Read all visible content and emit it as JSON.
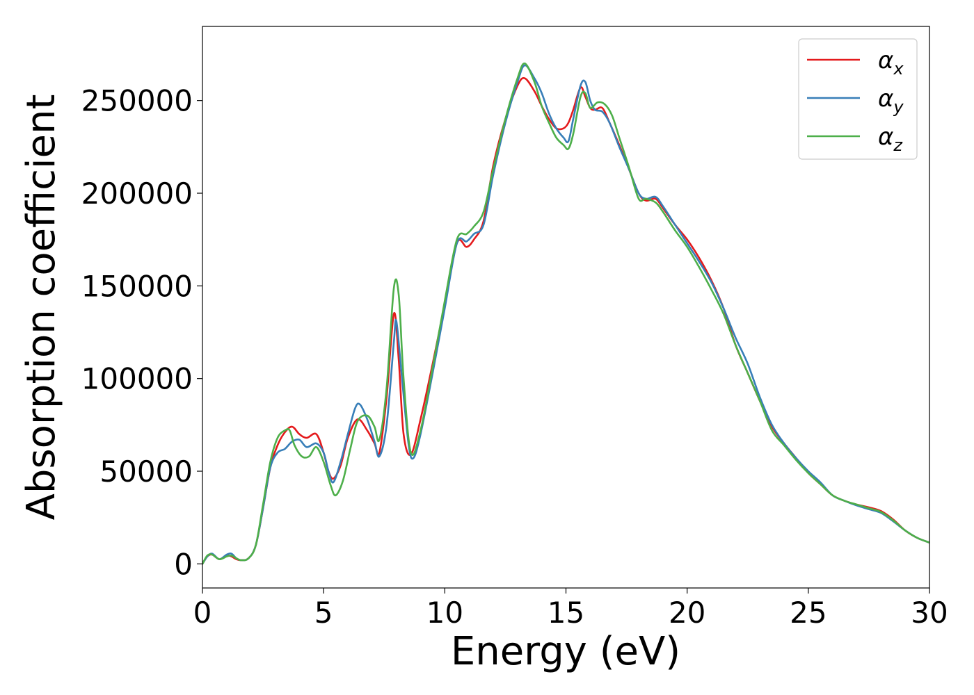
{
  "chart_data": {
    "type": "line",
    "xlabel": "Energy (eV)",
    "ylabel": "Absorption coefficient",
    "xlim": [
      0,
      30
    ],
    "ylim": [
      -13000,
      290000
    ],
    "xticks": [
      0,
      5,
      10,
      15,
      20,
      25,
      30
    ],
    "xtick_labels": [
      "0",
      "5",
      "10",
      "15",
      "20",
      "25",
      "30"
    ],
    "yticks": [
      0,
      50000,
      100000,
      150000,
      200000,
      250000
    ],
    "ytick_labels": [
      "0",
      "50000",
      "100000",
      "150000",
      "200000",
      "250000"
    ],
    "grid": false,
    "legend_position": "top-right",
    "series": [
      {
        "symbol": "α",
        "subscript": "x",
        "color": "#e41a1c",
        "x": [
          0,
          0.2,
          0.4,
          0.7,
          1.0,
          1.2,
          1.4,
          1.6,
          1.9,
          2.2,
          2.5,
          2.8,
          3.1,
          3.4,
          3.7,
          4.0,
          4.3,
          4.7,
          5.0,
          5.2,
          5.4,
          5.7,
          6.0,
          6.4,
          6.8,
          7.1,
          7.3,
          7.6,
          7.9,
          8.1,
          8.3,
          8.6,
          9.0,
          9.5,
          10.0,
          10.5,
          10.9,
          11.2,
          11.6,
          12.0,
          12.5,
          13.0,
          13.3,
          13.7,
          14.0,
          14.3,
          14.6,
          14.9,
          15.1,
          15.3,
          15.6,
          15.8,
          16.0,
          16.2,
          16.5,
          16.8,
          17.2,
          17.6,
          18.0,
          18.3,
          18.7,
          19.0,
          19.5,
          20.0,
          20.5,
          21.0,
          21.5,
          22.0,
          22.5,
          23.0,
          23.5,
          24.0,
          24.5,
          25.0,
          25.5,
          26.0,
          26.5,
          27.0,
          27.5,
          28.0,
          28.5,
          29.0,
          29.5,
          30.0
        ],
        "values": [
          0,
          4000,
          5000,
          2500,
          4500,
          4000,
          2500,
          2000,
          3000,
          10000,
          30000,
          52000,
          64000,
          71000,
          74000,
          70000,
          68000,
          70000,
          60000,
          50000,
          46000,
          53000,
          68000,
          78000,
          72000,
          65000,
          60000,
          90000,
          135000,
          110000,
          70000,
          59000,
          78000,
          108000,
          140000,
          173000,
          171000,
          175000,
          185000,
          215000,
          240000,
          258000,
          262000,
          255000,
          247000,
          240000,
          235000,
          235000,
          238000,
          245000,
          257000,
          252000,
          246000,
          245000,
          246000,
          238000,
          226000,
          213000,
          200000,
          196000,
          197000,
          192000,
          183000,
          175000,
          165000,
          153000,
          138000,
          118000,
          103000,
          88000,
          74000,
          65000,
          57000,
          49000,
          43000,
          37000,
          34000,
          32000,
          30500,
          28500,
          24000,
          18000,
          14000,
          11500
        ]
      },
      {
        "symbol": "α",
        "subscript": "y",
        "color": "#377eb8",
        "x": [
          0,
          0.2,
          0.4,
          0.7,
          1.0,
          1.2,
          1.4,
          1.6,
          1.9,
          2.2,
          2.5,
          2.8,
          3.1,
          3.4,
          3.7,
          4.0,
          4.3,
          4.7,
          5.0,
          5.2,
          5.4,
          5.7,
          6.0,
          6.3,
          6.5,
          6.8,
          7.1,
          7.3,
          7.6,
          7.9,
          8.0,
          8.2,
          8.5,
          8.7,
          9.0,
          9.5,
          10.0,
          10.5,
          10.9,
          11.2,
          11.6,
          12.0,
          12.5,
          13.0,
          13.3,
          13.7,
          14.0,
          14.3,
          14.6,
          14.9,
          15.1,
          15.3,
          15.6,
          15.8,
          16.0,
          16.2,
          16.5,
          16.8,
          17.2,
          17.6,
          18.0,
          18.3,
          18.7,
          19.0,
          19.5,
          20.0,
          20.5,
          21.0,
          21.5,
          22.0,
          22.5,
          23.0,
          23.5,
          24.0,
          24.5,
          25.0,
          25.5,
          26.0,
          26.5,
          27.0,
          27.5,
          28.0,
          28.5,
          29.0,
          29.5,
          30.0
        ],
        "values": [
          0,
          4000,
          5500,
          2500,
          5000,
          5500,
          3000,
          2000,
          3000,
          10000,
          30000,
          52000,
          60000,
          62000,
          66000,
          67000,
          63000,
          65000,
          60000,
          50000,
          44000,
          55000,
          70000,
          84000,
          86000,
          78000,
          66000,
          58000,
          75000,
          120000,
          131000,
          105000,
          65000,
          57000,
          70000,
          103000,
          138000,
          173000,
          174000,
          178000,
          183000,
          210000,
          238000,
          260000,
          269000,
          262000,
          254000,
          243000,
          235000,
          230000,
          228000,
          240000,
          258000,
          260000,
          250000,
          245000,
          244000,
          238000,
          225000,
          213000,
          200000,
          197000,
          198000,
          193000,
          183000,
          173000,
          163000,
          152000,
          138000,
          122000,
          108000,
          90000,
          75000,
          65000,
          57000,
          50000,
          44000,
          37000,
          34000,
          31500,
          29500,
          27500,
          23000,
          18000,
          14000,
          11500
        ]
      },
      {
        "symbol": "α",
        "subscript": "z",
        "color": "#4daf4a",
        "x": [
          0,
          0.2,
          0.4,
          0.7,
          1.0,
          1.2,
          1.4,
          1.6,
          1.9,
          2.2,
          2.5,
          2.8,
          3.1,
          3.4,
          3.6,
          3.8,
          4.1,
          4.4,
          4.7,
          5.0,
          5.3,
          5.5,
          5.8,
          6.1,
          6.4,
          6.8,
          7.1,
          7.3,
          7.6,
          7.9,
          8.1,
          8.3,
          8.6,
          9.0,
          9.5,
          10.0,
          10.5,
          10.9,
          11.2,
          11.6,
          12.0,
          12.5,
          13.0,
          13.3,
          13.7,
          14.0,
          14.3,
          14.6,
          14.9,
          15.1,
          15.3,
          15.6,
          15.8,
          16.0,
          16.3,
          16.6,
          16.9,
          17.2,
          17.6,
          18.0,
          18.3,
          18.7,
          19.0,
          19.5,
          20.0,
          20.5,
          21.0,
          21.5,
          22.0,
          22.5,
          23.0,
          23.5,
          24.0,
          24.5,
          25.0,
          25.5,
          26.0,
          26.5,
          27.0,
          27.5,
          28.0,
          28.5,
          29.0,
          29.5,
          30.0
        ],
        "values": [
          0,
          4500,
          5000,
          2500,
          4000,
          4500,
          3000,
          2000,
          3000,
          10000,
          32000,
          55000,
          68000,
          72000,
          72000,
          64000,
          58000,
          58000,
          63000,
          55000,
          42000,
          37000,
          45000,
          62000,
          77000,
          80000,
          74000,
          67000,
          95000,
          149000,
          145000,
          100000,
          60000,
          72000,
          106000,
          142000,
          175000,
          178000,
          182000,
          190000,
          213000,
          240000,
          262000,
          270000,
          260000,
          247000,
          238000,
          230000,
          226000,
          224000,
          232000,
          252000,
          254000,
          246000,
          249000,
          248000,
          242000,
          230000,
          214000,
          197000,
          197000,
          195000,
          190000,
          180000,
          171000,
          160000,
          148000,
          135000,
          118000,
          103000,
          88000,
          72000,
          64000,
          56000,
          49000,
          43000,
          37000,
          34000,
          32000,
          30000,
          28000,
          23500,
          18000,
          14000,
          11500
        ]
      }
    ]
  }
}
